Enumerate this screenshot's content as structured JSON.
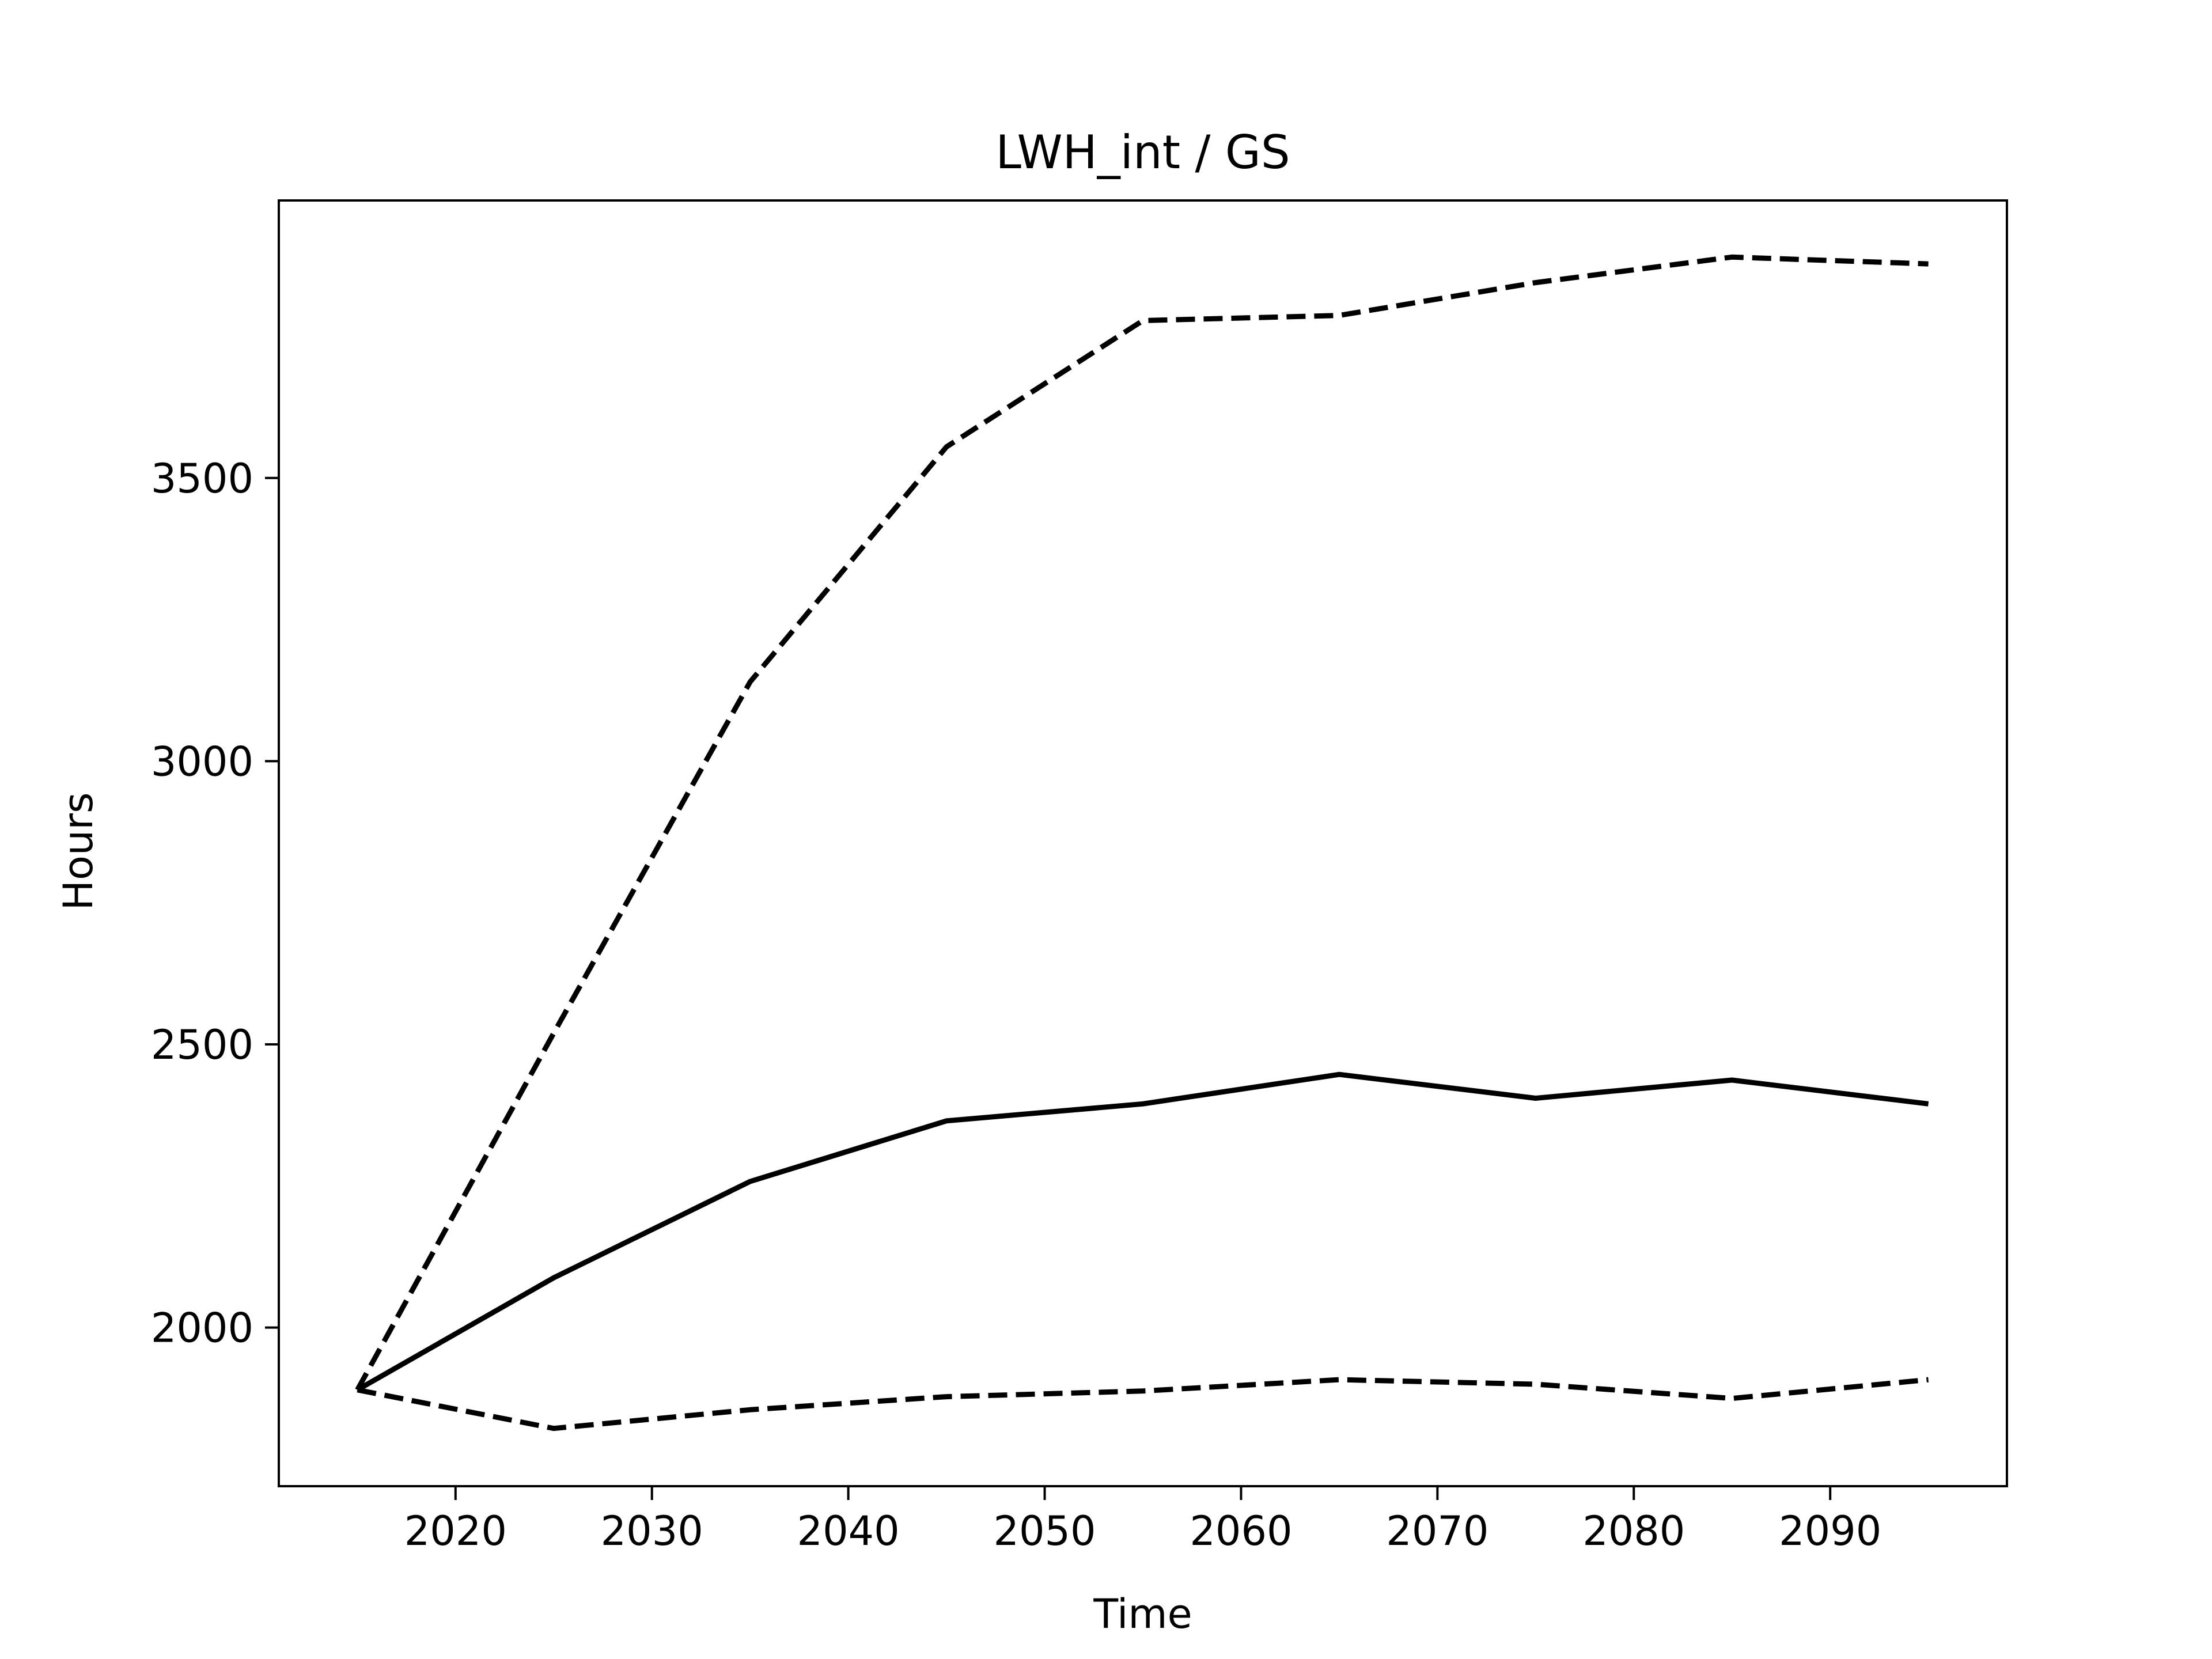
{
  "chart_data": {
    "type": "line",
    "title": "LWH_int / GS",
    "xlabel": "Time",
    "ylabel": "Hours",
    "xlim": [
      2011,
      2099
    ],
    "ylim": [
      1720,
      3990
    ],
    "xticks": [
      2020,
      2030,
      2040,
      2050,
      2060,
      2070,
      2080,
      2090
    ],
    "yticks": [
      2000,
      2500,
      3000,
      3500
    ],
    "grid": false,
    "legend": "none",
    "x": [
      2015,
      2025,
      2035,
      2045,
      2055,
      2065,
      2075,
      2085,
      2095
    ],
    "series": [
      {
        "style": "dashed",
        "color": "#000000",
        "values": [
          1890,
          2520,
          3140,
          3555,
          3778,
          3787,
          3845,
          3890,
          3878
        ]
      },
      {
        "style": "solid",
        "color": "#000000",
        "values": [
          1890,
          2088,
          2258,
          2365,
          2395,
          2447,
          2405,
          2437,
          2395
        ]
      },
      {
        "style": "dashed",
        "color": "#000000",
        "values": [
          1890,
          1822,
          1855,
          1878,
          1888,
          1908,
          1900,
          1875,
          1908
        ]
      }
    ]
  }
}
